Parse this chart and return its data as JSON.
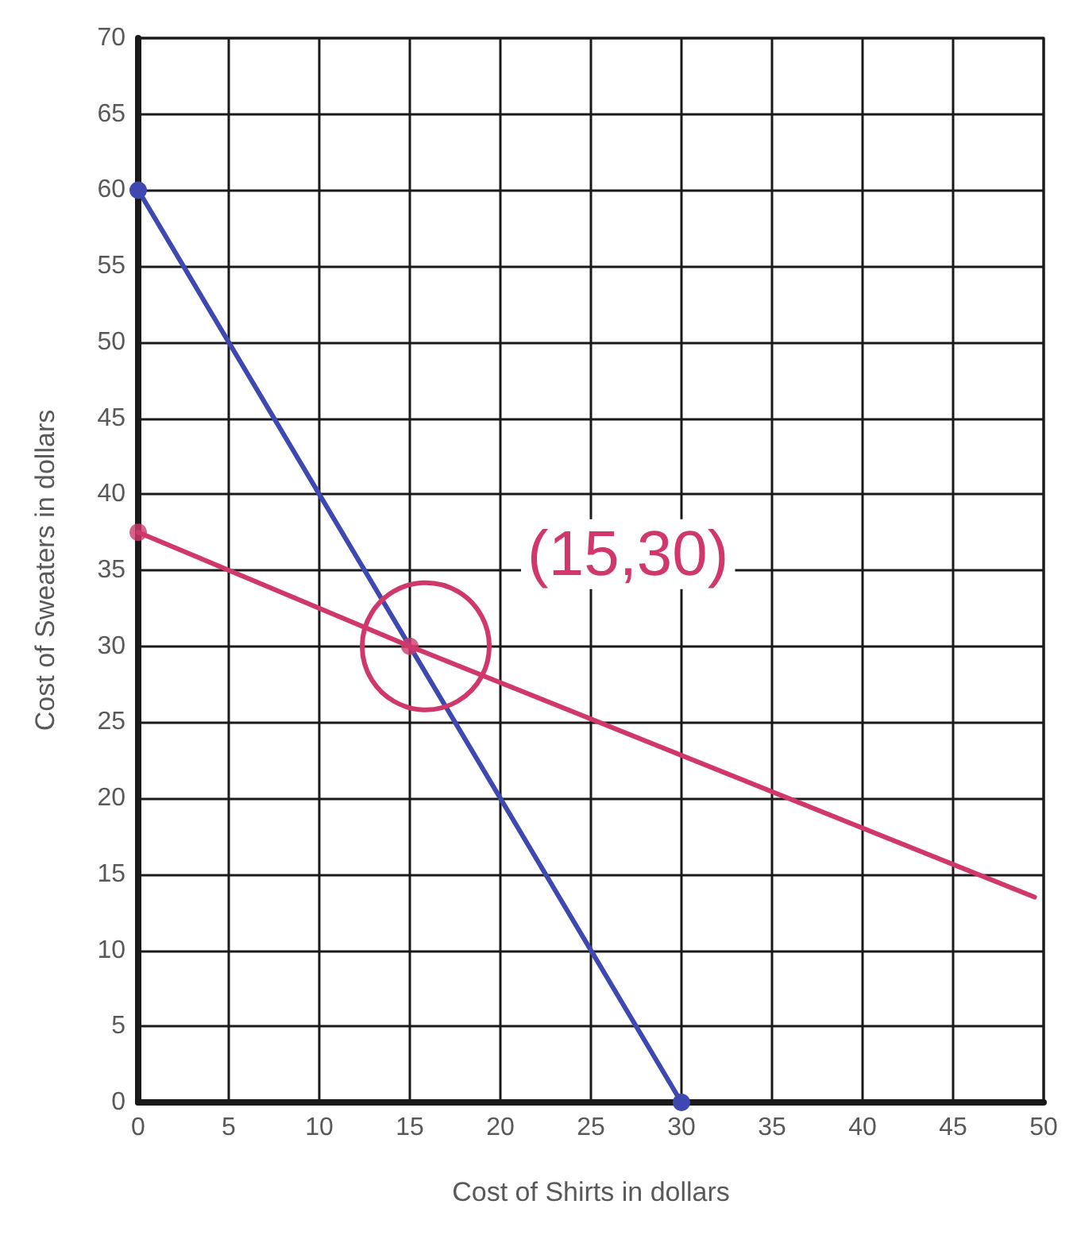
{
  "chart_data": {
    "type": "line",
    "xlabel": "Cost of Shirts in dollars",
    "ylabel": "Cost of Sweaters in dollars",
    "xlim": [
      0,
      50
    ],
    "xticks": [
      0,
      5,
      10,
      15,
      20,
      25,
      30,
      35,
      40,
      45,
      50
    ],
    "ylim": [
      0,
      70
    ],
    "yticks": [
      0,
      5,
      10,
      15,
      20,
      25,
      30,
      35,
      40,
      45,
      50,
      55,
      60,
      65,
      70
    ],
    "grid": true,
    "line_style": "solid",
    "series": [
      {
        "color": "#3f48b0",
        "x": [
          0,
          30
        ],
        "values": [
          60,
          0
        ],
        "marker": "circle"
      },
      {
        "color": "#d0386b",
        "x": [
          0,
          15,
          49.5
        ],
        "values": [
          37.5,
          30,
          13.5
        ],
        "marker": "none"
      },
      {
        "type": "scatter",
        "color": "#d0386b",
        "x": [
          0,
          15
        ],
        "values": [
          37.5,
          30
        ],
        "marker": "circle"
      }
    ],
    "annotations": [
      {
        "text": "(15,30)",
        "x": 15,
        "y": 30
      }
    ]
  }
}
